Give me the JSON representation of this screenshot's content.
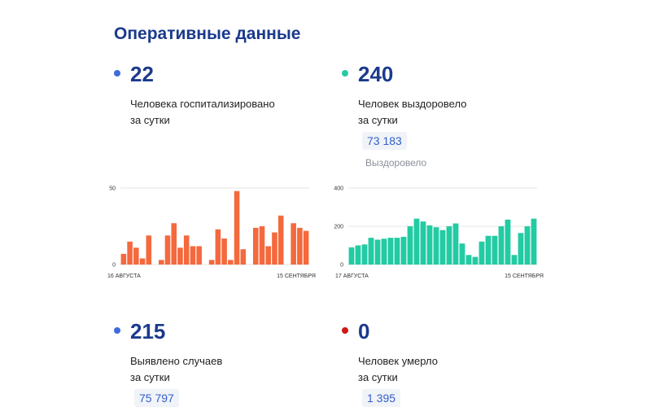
{
  "title": "Оперативные данные",
  "colors": {
    "title": "#1a3a8c",
    "dot_blue": "#3d6be0",
    "dot_teal": "#27c9a5",
    "dot_red": "#d01818",
    "bar_orange": "#f4693d",
    "bar_teal": "#22cba3"
  },
  "stats": {
    "hospitalized": {
      "value": "22",
      "label_line1": "Человека госпитализировано",
      "label_line2": "за сутки"
    },
    "recovered": {
      "value": "240",
      "label_line1": "Человек выздоровело",
      "label_line2": "за сутки",
      "total": "73 183",
      "total_caption": "Выздоровело"
    },
    "cases": {
      "value": "215",
      "label_line1": "Выявлено случаев",
      "label_line2": "за сутки",
      "total": "75 797"
    },
    "deaths": {
      "value": "0",
      "label_line1": "Человек умерло",
      "label_line2": "за сутки",
      "total": "1 395"
    }
  },
  "chart_data": [
    {
      "type": "bar",
      "series_key": "hospitalized",
      "color": "#f4693d",
      "x_start_label": "16 АВГУСТА",
      "x_end_label": "15 СЕНТЯБРЯ",
      "y_ticks": [
        "0",
        "50"
      ],
      "ylim": [
        0,
        50
      ],
      "values": [
        7,
        15,
        11,
        4,
        19,
        null,
        3,
        19,
        27,
        11,
        19,
        12,
        12,
        null,
        3,
        23,
        17,
        3,
        48,
        10,
        null,
        24,
        25,
        12,
        21,
        32,
        null,
        27,
        24,
        22
      ]
    },
    {
      "type": "bar",
      "series_key": "recovered",
      "color": "#22cba3",
      "x_start_label": "17 АВГУСТА",
      "x_end_label": "15 СЕНТЯБРЯ",
      "y_ticks": [
        "0",
        "200",
        "400"
      ],
      "ylim": [
        0,
        400
      ],
      "values": [
        90,
        100,
        105,
        140,
        130,
        135,
        140,
        140,
        145,
        200,
        240,
        225,
        205,
        195,
        180,
        200,
        215,
        110,
        50,
        40,
        120,
        150,
        150,
        200,
        235,
        50,
        165,
        200,
        240
      ]
    }
  ]
}
